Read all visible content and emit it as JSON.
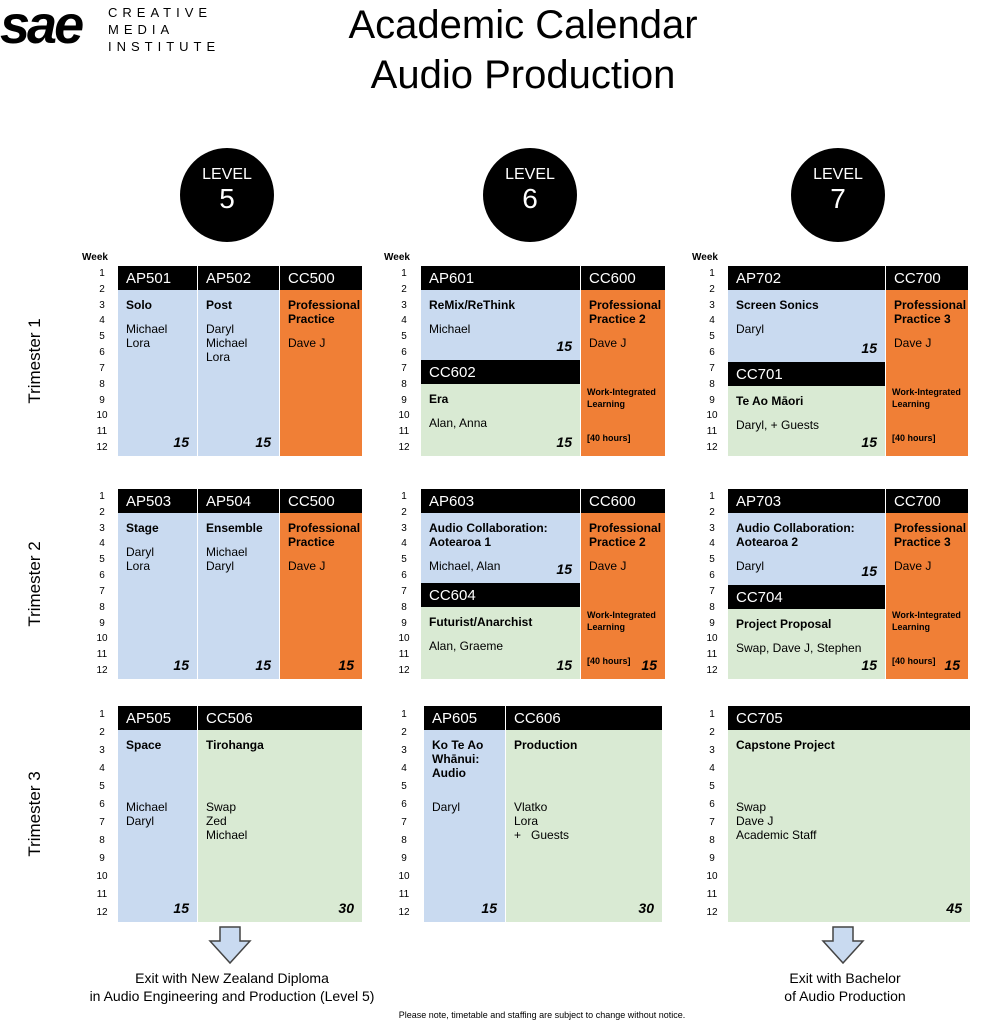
{
  "header": {
    "logo": "sae",
    "logo_lines": [
      "CREATIVE",
      "MEDIA",
      "INSTITUTE"
    ],
    "title_lines": [
      "Academic Calendar",
      "Audio Production"
    ]
  },
  "levels": [
    {
      "label": "LEVEL",
      "number": 5
    },
    {
      "label": "LEVEL",
      "number": 6
    },
    {
      "label": "LEVEL",
      "number": 7
    }
  ],
  "week_label": "Week",
  "weeks": [
    1,
    2,
    3,
    4,
    5,
    6,
    7,
    8,
    9,
    10,
    11,
    12
  ],
  "trimesters": [
    {
      "label": "Trimester 1",
      "levels": [
        {
          "courses": [
            {
              "code": "AP501",
              "title": "Solo",
              "staff": [
                "Michael",
                "Lora"
              ],
              "credits": 15,
              "color": "#c9daf0"
            },
            {
              "code": "AP502",
              "title": "Post",
              "staff": [
                "Daryl",
                "Michael",
                "Lora"
              ],
              "credits": 15,
              "color": "#c9daf0"
            },
            {
              "code": "CC500",
              "title": "Professional Practice",
              "staff": [
                "Dave J"
              ],
              "color": "#f07f36"
            }
          ]
        },
        {
          "courses": [
            {
              "code": "AP601",
              "title": "ReMix/ReThink",
              "staff": [
                "Michael"
              ],
              "credits": 15,
              "color": "#c9daf0"
            },
            {
              "code": "CC600",
              "title": "Professional Practice 2",
              "staff": [
                "Dave J"
              ],
              "note": "Work-Integrated Learning",
              "hours": "[40 hours]",
              "color": "#f07f36"
            },
            {
              "code": "CC602",
              "title": "Era",
              "staff": [
                "Alan, Anna"
              ],
              "credits": 15,
              "color": "#d9ead3"
            }
          ]
        },
        {
          "courses": [
            {
              "code": "AP702",
              "title": "Screen Sonics",
              "staff": [
                "Daryl"
              ],
              "credits": 15,
              "color": "#c9daf0"
            },
            {
              "code": "CC700",
              "title": "Professional Practice 3",
              "staff": [
                "Dave J"
              ],
              "note": "Work-Integrated Learning",
              "hours": "[40 hours]",
              "color": "#f07f36"
            },
            {
              "code": "CC701",
              "title": "Te Ao Māori",
              "staff": [
                "Daryl, + Guests"
              ],
              "credits": 15,
              "color": "#d9ead3"
            }
          ]
        }
      ]
    },
    {
      "label": "Trimester 2",
      "levels": [
        {
          "courses": [
            {
              "code": "AP503",
              "title": "Stage",
              "staff": [
                "Daryl",
                "Lora"
              ],
              "credits": 15,
              "color": "#c9daf0"
            },
            {
              "code": "AP504",
              "title": "Ensemble",
              "staff": [
                "Michael",
                "Daryl"
              ],
              "credits": 15,
              "color": "#c9daf0"
            },
            {
              "code": "CC500",
              "title": "Professional Practice",
              "staff": [
                "Dave J"
              ],
              "credits": 15,
              "color": "#f07f36"
            }
          ]
        },
        {
          "courses": [
            {
              "code": "AP603",
              "title": "Audio Collaboration: Aotearoa 1",
              "staff": [
                "Michael, Alan"
              ],
              "credits": 15,
              "color": "#c9daf0"
            },
            {
              "code": "CC600",
              "title": "Professional Practice 2",
              "staff": [
                "Dave J"
              ],
              "note": "Work-Integrated Learning",
              "hours": "[40 hours]",
              "credits": 15,
              "color": "#f07f36"
            },
            {
              "code": "CC604",
              "title": "Futurist/Anarchist",
              "staff": [
                "Alan, Graeme"
              ],
              "credits": 15,
              "color": "#d9ead3"
            }
          ]
        },
        {
          "courses": [
            {
              "code": "AP703",
              "title": "Audio Collaboration: Aotearoa 2",
              "staff": [
                "Daryl"
              ],
              "credits": 15,
              "color": "#c9daf0"
            },
            {
              "code": "CC700",
              "title": "Professional Practice 3",
              "staff": [
                "Dave J"
              ],
              "note": "Work-Integrated Learning",
              "hours": "[40 hours]",
              "credits": 15,
              "color": "#f07f36"
            },
            {
              "code": "CC704",
              "title": "Project Proposal",
              "staff": [
                "Swap, Dave J, Stephen"
              ],
              "credits": 15,
              "color": "#d9ead3"
            }
          ]
        }
      ]
    },
    {
      "label": "Trimester 3",
      "levels": [
        {
          "courses": [
            {
              "code": "AP505",
              "title": "Space",
              "staff": [
                "Michael",
                "Daryl"
              ],
              "credits": 15,
              "color": "#c9daf0"
            },
            {
              "code": "CC506",
              "title": "Tirohanga",
              "staff": [
                "Swap",
                "Zed",
                "Michael"
              ],
              "credits": 30,
              "color": "#d9ead3"
            }
          ]
        },
        {
          "courses": [
            {
              "code": "AP605",
              "title": "Ko Te Ao Whānui: Audio",
              "staff": [
                "Daryl"
              ],
              "credits": 15,
              "color": "#c9daf0"
            },
            {
              "code": "CC606",
              "title": "Production",
              "staff": [
                "Vlatko",
                "Lora",
                "+   Guests"
              ],
              "credits": 30,
              "color": "#d9ead3"
            }
          ]
        },
        {
          "courses": [
            {
              "code": "CC705",
              "title": "Capstone Project",
              "staff": [
                "Swap",
                "Dave J",
                "Academic Staff"
              ],
              "credits": 45,
              "color": "#d9ead3"
            }
          ]
        }
      ]
    }
  ],
  "exits": [
    {
      "lines": [
        "Exit with New Zealand Diploma",
        "in Audio Engineering and Production (Level 5)"
      ]
    },
    {
      "lines": [
        "Exit with Bachelor",
        "of Audio Production"
      ]
    }
  ],
  "footer": "Please note, timetable and staffing are subject to change without notice."
}
